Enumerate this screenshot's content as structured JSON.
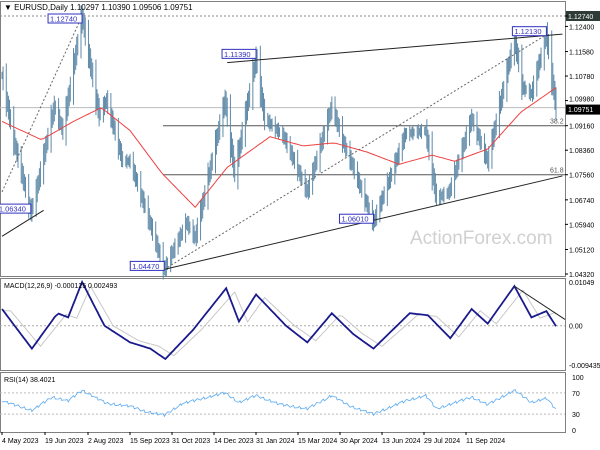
{
  "header": {
    "symbol_label": "EURUSD,Daily",
    "ohlc": "1.10297 1.10390 1.09506 1.09751"
  },
  "watermark": "ActionForex.com",
  "colors": {
    "bars": "#5f8aa8",
    "moving_average": "#f04040",
    "macd": "#1a1a8c",
    "macd_signal": "#c8c8c8",
    "rsi": "#5aaaf0",
    "label_box": "#3030c0",
    "current_price_tag": "#000000"
  },
  "chart_data": [
    {
      "type": "bar",
      "panel": "price",
      "ylim": [
        1.0432,
        1.1274
      ],
      "y_ticks": [
        "1.12740",
        "1.12400",
        "1.11580",
        "1.10780",
        "1.09980",
        "1.09160",
        "1.08360",
        "1.07560",
        "1.06740",
        "1.05940",
        "1.05120",
        "1.04320"
      ],
      "x_ticks": [
        "4 May 2023",
        "19 Jun 2023",
        "2 Aug 2023",
        "15 Sep 2023",
        "31 Oct 2023",
        "14 Dec 2023",
        "31 Jan 2024",
        "15 Mar 2024",
        "30 Apr 2024",
        "13 Jun 2024",
        "29 Jul 2024",
        "11 Sep 2024"
      ],
      "current_price": "1.09751",
      "top_price_tag": "1.12740",
      "close_pivots": [
        [
          "2023-05-04",
          1.108
        ],
        [
          "2023-05-15",
          1.087
        ],
        [
          "2023-05-31",
          1.0634
        ],
        [
          "2023-06-05",
          1.07
        ],
        [
          "2023-06-22",
          1.098
        ],
        [
          "2023-06-30",
          1.09
        ],
        [
          "2023-07-18",
          1.1274
        ],
        [
          "2023-08-03",
          1.095
        ],
        [
          "2023-08-10",
          1.1
        ],
        [
          "2023-08-25",
          1.08
        ],
        [
          "2023-09-01",
          1.08
        ],
        [
          "2023-09-15",
          1.065
        ],
        [
          "2023-10-03",
          1.0447
        ],
        [
          "2023-10-13",
          1.052
        ],
        [
          "2023-10-24",
          1.06
        ],
        [
          "2023-11-01",
          1.055
        ],
        [
          "2023-11-29",
          1.1
        ],
        [
          "2023-12-08",
          1.076
        ],
        [
          "2023-12-28",
          1.1139
        ],
        [
          "2024-01-05",
          1.094
        ],
        [
          "2024-01-23",
          1.088
        ],
        [
          "2024-02-14",
          1.07
        ],
        [
          "2024-03-08",
          1.098
        ],
        [
          "2024-03-19",
          1.086
        ],
        [
          "2024-03-28",
          1.078
        ],
        [
          "2024-04-16",
          1.0601
        ],
        [
          "2024-05-03",
          1.076
        ],
        [
          "2024-05-16",
          1.089
        ],
        [
          "2024-06-04",
          1.09
        ],
        [
          "2024-06-14",
          1.068
        ],
        [
          "2024-06-26",
          1.07
        ],
        [
          "2024-07-17",
          1.094
        ],
        [
          "2024-08-01",
          1.08
        ],
        [
          "2024-08-26",
          1.1201
        ],
        [
          "2024-09-03",
          1.104
        ],
        [
          "2024-09-11",
          1.102
        ],
        [
          "2024-09-25",
          1.1214
        ],
        [
          "2024-10-04",
          1.0975
        ]
      ],
      "moving_average": [
        [
          "2023-05-04",
          1.093
        ],
        [
          "2023-06-10",
          1.087
        ],
        [
          "2023-07-10",
          1.093
        ],
        [
          "2023-08-05",
          1.0975
        ],
        [
          "2023-09-01",
          1.09
        ],
        [
          "2023-10-01",
          1.076
        ],
        [
          "2023-11-01",
          1.065
        ],
        [
          "2023-12-01",
          1.078
        ],
        [
          "2024-01-10",
          1.088
        ],
        [
          "2024-02-10",
          1.085
        ],
        [
          "2024-03-10",
          1.086
        ],
        [
          "2024-04-10",
          1.083
        ],
        [
          "2024-05-10",
          1.079
        ],
        [
          "2024-06-10",
          1.082
        ],
        [
          "2024-07-01",
          1.08
        ],
        [
          "2024-08-01",
          1.084
        ],
        [
          "2024-09-01",
          1.096
        ],
        [
          "2024-10-04",
          1.104
        ]
      ],
      "annotations": [
        {
          "label": "1.12740",
          "date": "2023-07-18",
          "price": 1.1274
        },
        {
          "label": "1.06340",
          "date": "2023-05-31",
          "price": 1.0634
        },
        {
          "label": "1.04470",
          "date": "2023-10-03",
          "price": 1.0447
        },
        {
          "label": "1.11390",
          "date": "2023-12-28",
          "price": 1.1139
        },
        {
          "label": "1.06010",
          "date": "2024-04-16",
          "price": 1.0601
        },
        {
          "label": "1.12130",
          "date": "2024-09-25",
          "price": 1.1213
        }
      ],
      "fib_levels": [
        {
          "label": "38.2",
          "price": 1.0916
        },
        {
          "label": "61.8",
          "price": 1.0756
        }
      ],
      "trendlines": [
        {
          "style": "solid",
          "from": [
            "2023-12-01",
            1.1122
          ],
          "to": [
            "2024-10-10",
            1.1215
          ]
        },
        {
          "style": "solid",
          "from": [
            "2023-10-03",
            1.0447
          ],
          "to": [
            "2024-10-10",
            1.0752
          ]
        },
        {
          "style": "solid",
          "from": [
            "2023-05-04",
            1.0555
          ],
          "to": [
            "2023-06-12",
            1.064
          ]
        },
        {
          "style": "dashed",
          "from": [
            "2023-10-03",
            1.0447
          ],
          "to": [
            "2024-09-25",
            1.1213
          ]
        },
        {
          "style": "dashed",
          "from": [
            "2023-05-04",
            1.07
          ],
          "to": [
            "2023-07-18",
            1.1274
          ]
        }
      ]
    },
    {
      "type": "line",
      "panel": "macd",
      "title": "MACD(12,26,9) -0.000125 0.002493",
      "ylim": [
        -0.009435,
        0.01049
      ],
      "y_ticks": [
        "0.01049",
        "0.00",
        "-0.009435"
      ],
      "macd": [
        [
          "2023-05-04",
          0.004
        ],
        [
          "2023-06-01",
          -0.0055
        ],
        [
          "2023-06-25",
          0.003
        ],
        [
          "2023-07-05",
          0.002
        ],
        [
          "2023-07-18",
          0.0105
        ],
        [
          "2023-08-08",
          0.0
        ],
        [
          "2023-09-01",
          -0.004
        ],
        [
          "2023-09-20",
          -0.0055
        ],
        [
          "2023-10-04",
          -0.008
        ],
        [
          "2023-10-30",
          -0.001
        ],
        [
          "2023-11-30",
          0.009
        ],
        [
          "2023-12-12",
          0.001
        ],
        [
          "2023-12-28",
          0.0075
        ],
        [
          "2024-01-25",
          0.0
        ],
        [
          "2024-02-14",
          -0.004
        ],
        [
          "2024-03-08",
          0.003
        ],
        [
          "2024-03-28",
          -0.002
        ],
        [
          "2024-04-16",
          -0.0055
        ],
        [
          "2024-05-20",
          0.003
        ],
        [
          "2024-06-06",
          0.0025
        ],
        [
          "2024-06-27",
          -0.003
        ],
        [
          "2024-07-17",
          0.004
        ],
        [
          "2024-08-01",
          0.0005
        ],
        [
          "2024-08-26",
          0.0095
        ],
        [
          "2024-09-11",
          0.002
        ],
        [
          "2024-09-25",
          0.0035
        ],
        [
          "2024-10-04",
          -0.000125
        ]
      ],
      "signal_lag_days": 8,
      "trendline": {
        "from": [
          "2024-08-26",
          0.0095
        ],
        "to": [
          "2024-10-10",
          0.0015
        ]
      }
    },
    {
      "type": "line",
      "panel": "rsi",
      "title": "RSI(14) 38.4021",
      "ylim": [
        0,
        100
      ],
      "y_ticks": [
        "100",
        "70",
        "30",
        "0"
      ],
      "levels": [
        70,
        30
      ],
      "rsi": [
        [
          "2023-05-04",
          55
        ],
        [
          "2023-06-01",
          37
        ],
        [
          "2023-06-20",
          62
        ],
        [
          "2023-07-05",
          55
        ],
        [
          "2023-07-18",
          75
        ],
        [
          "2023-08-10",
          50
        ],
        [
          "2023-09-01",
          45
        ],
        [
          "2023-09-15",
          35
        ],
        [
          "2023-10-03",
          28
        ],
        [
          "2023-10-20",
          50
        ],
        [
          "2023-11-29",
          70
        ],
        [
          "2023-12-12",
          52
        ],
        [
          "2023-12-28",
          65
        ],
        [
          "2024-01-20",
          48
        ],
        [
          "2024-02-14",
          40
        ],
        [
          "2024-03-08",
          65
        ],
        [
          "2024-03-25",
          45
        ],
        [
          "2024-04-16",
          30
        ],
        [
          "2024-05-16",
          55
        ],
        [
          "2024-06-04",
          65
        ],
        [
          "2024-06-14",
          40
        ],
        [
          "2024-07-17",
          62
        ],
        [
          "2024-08-01",
          48
        ],
        [
          "2024-08-26",
          75
        ],
        [
          "2024-09-11",
          52
        ],
        [
          "2024-09-25",
          60
        ],
        [
          "2024-10-04",
          38.4
        ]
      ]
    }
  ]
}
